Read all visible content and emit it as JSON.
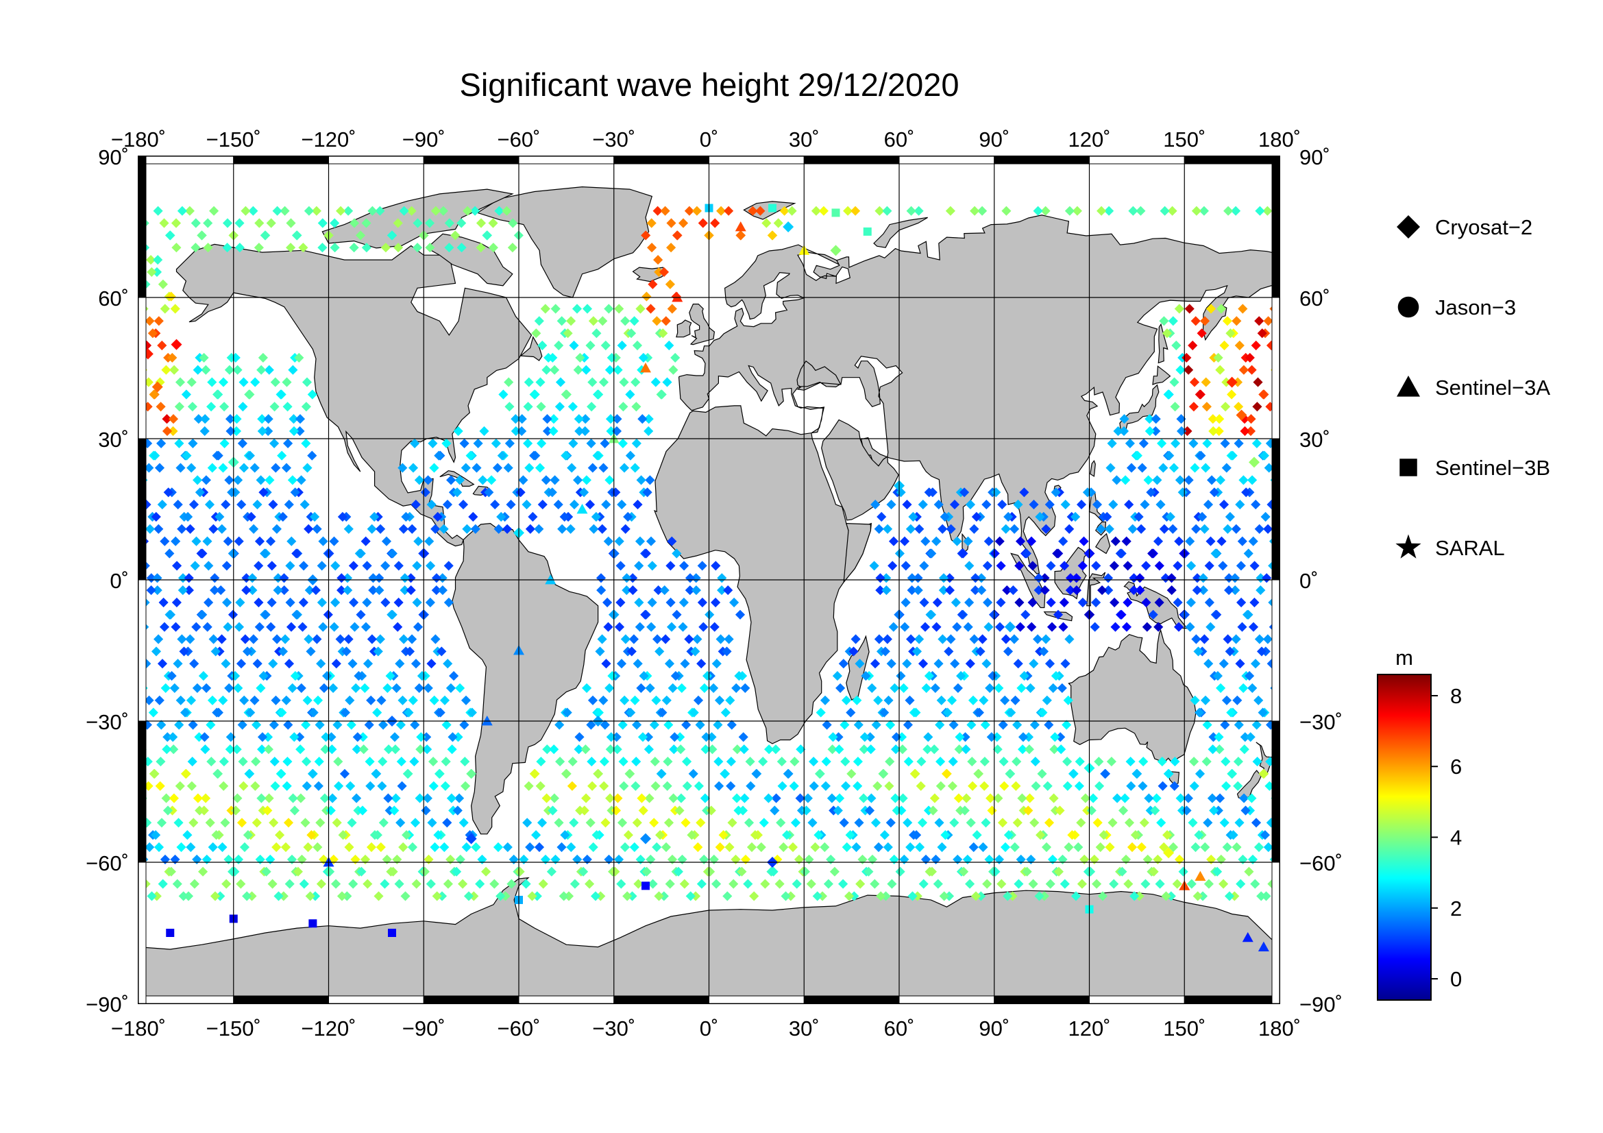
{
  "title": "Significant wave height 29/12/2020",
  "map": {
    "projection": "equirectangular",
    "lon_range": [
      -180,
      180
    ],
    "lat_range": [
      -90,
      90
    ],
    "lon_ticks": [
      -180,
      -150,
      -120,
      -90,
      -60,
      -30,
      0,
      30,
      60,
      90,
      120,
      150,
      180
    ],
    "lat_ticks": [
      90,
      60,
      30,
      0,
      -30,
      -60,
      -90
    ],
    "lon_tick_labels": [
      "−180˚",
      "−150˚",
      "−120˚",
      "−90˚",
      "−60˚",
      "−30˚",
      "0˚",
      "30˚",
      "60˚",
      "90˚",
      "120˚",
      "150˚",
      "180˚"
    ],
    "lat_tick_labels": [
      "90˚",
      "60˚",
      "30˚",
      "0˚",
      "−30˚",
      "−60˚",
      "−90˚"
    ],
    "land_color": "#c0c0c0",
    "ocean_color": "#ffffff",
    "grid": true
  },
  "legend": {
    "items": [
      {
        "label": "Cryosat−2",
        "symbol": "diamond"
      },
      {
        "label": "Jason−3",
        "symbol": "circle"
      },
      {
        "label": "Sentinel−3A",
        "symbol": "triangle"
      },
      {
        "label": "Sentinel−3B",
        "symbol": "square"
      },
      {
        "label": "SARAL",
        "symbol": "star"
      }
    ]
  },
  "colorbar": {
    "unit": "m",
    "range": [
      -0.6,
      8.6
    ],
    "ticks": [
      0,
      2,
      4,
      6,
      8
    ],
    "colormap": "jet"
  },
  "chart_data": {
    "type": "scatter",
    "title": "Significant wave height 29/12/2020",
    "xlabel": "",
    "ylabel": "",
    "xlim": [
      -180,
      180
    ],
    "ylim": [
      -90,
      90
    ],
    "value_unit": "m",
    "series": [
      {
        "name": "Cryosat−2",
        "symbol": "diamond",
        "points": [
          [
            -177,
            48,
            7.2
          ],
          [
            -174,
            41,
            6.5
          ],
          [
            -168,
            50,
            7.4
          ],
          [
            -150,
            25,
            3.4
          ],
          [
            -125,
            0,
            1.8
          ],
          [
            -100,
            -30,
            1.5
          ],
          [
            -75,
            -55,
            1.2
          ],
          [
            -60,
            10,
            2.6
          ],
          [
            -35,
            -30,
            2.0
          ],
          [
            -20,
            -55,
            1.8
          ],
          [
            20,
            -60,
            1.0
          ],
          [
            60,
            20,
            2.3
          ],
          [
            95,
            -10,
            2.1
          ],
          [
            120,
            -40,
            3.0
          ],
          [
            145,
            -58,
            5.0
          ],
          [
            165,
            42,
            7.1
          ],
          [
            168,
            35,
            6.6
          ],
          [
            172,
            25,
            4.2
          ],
          [
            25,
            75,
            2.4
          ],
          [
            40,
            70,
            4.1
          ]
        ]
      },
      {
        "name": "Jason−3",
        "symbol": "circle",
        "points": []
      },
      {
        "name": "Sentinel−3A",
        "symbol": "triangle",
        "points": [
          [
            -10,
            60,
            7.1
          ],
          [
            -20,
            45,
            6.4
          ],
          [
            -30,
            30,
            4.0
          ],
          [
            -40,
            15,
            2.6
          ],
          [
            -50,
            0,
            2.3
          ],
          [
            -60,
            -15,
            1.8
          ],
          [
            -70,
            -30,
            1.5
          ],
          [
            10,
            75,
            6.8
          ],
          [
            30,
            70,
            5.2
          ],
          [
            175,
            -78,
            1.0
          ],
          [
            170,
            -76,
            0.8
          ],
          [
            150,
            -65,
            6.8
          ],
          [
            155,
            -63,
            6.2
          ],
          [
            -120,
            -60,
            1.0
          ]
        ]
      },
      {
        "name": "Sentinel−3B",
        "symbol": "square",
        "points": [
          [
            -170,
            -75,
            0.4
          ],
          [
            -150,
            -72,
            0.3
          ],
          [
            -125,
            -73,
            0.4
          ],
          [
            -100,
            -75,
            0.5
          ],
          [
            -60,
            -68,
            2.1
          ],
          [
            -20,
            -65,
            0.5
          ],
          [
            0,
            79,
            2.4
          ],
          [
            20,
            79,
            3.2
          ],
          [
            40,
            78,
            3.6
          ],
          [
            50,
            74,
            3.4
          ],
          [
            120,
            -70,
            3.0
          ]
        ]
      },
      {
        "name": "SARAL",
        "symbol": "star",
        "points": []
      }
    ]
  }
}
